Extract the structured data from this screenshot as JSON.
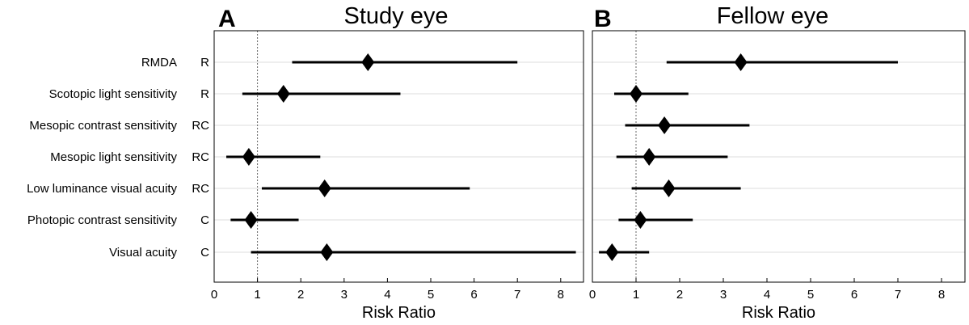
{
  "chart_data": [
    {
      "type": "forest",
      "panel": "A",
      "title": "Study eye",
      "xlabel": "Risk Ratio",
      "xlim": [
        0,
        8.4
      ],
      "xticks": [
        "0",
        "1",
        "2",
        "3",
        "4",
        "5",
        "6",
        "7",
        "8"
      ],
      "reference_line": 1,
      "gridlines": "horizontal",
      "marker": "diamond",
      "rows": [
        {
          "label": "RMDA",
          "code": "R",
          "estimate": 3.55,
          "lower": 1.8,
          "upper": 7.0
        },
        {
          "label": "Scotopic light sensitivity",
          "code": "R",
          "estimate": 1.6,
          "lower": 0.65,
          "upper": 4.3
        },
        {
          "label": "Mesopic contrast sensitivity",
          "code": "RC",
          "estimate": null,
          "lower": null,
          "upper": null
        },
        {
          "label": "Mesopic light sensitivity",
          "code": "RC",
          "estimate": 0.8,
          "lower": 0.28,
          "upper": 2.45
        },
        {
          "label": "Low luminance visual acuity",
          "code": "RC",
          "estimate": 2.55,
          "lower": 1.1,
          "upper": 5.9
        },
        {
          "label": "Photopic contrast sensitivity",
          "code": "C",
          "estimate": 0.85,
          "lower": 0.38,
          "upper": 1.95
        },
        {
          "label": "Visual acuity",
          "code": "C",
          "estimate": 2.6,
          "lower": 0.85,
          "upper": 8.35
        }
      ]
    },
    {
      "type": "forest",
      "panel": "B",
      "title": "Fellow eye",
      "xlabel": "Risk Ratio",
      "xlim": [
        0,
        8.4
      ],
      "xticks": [
        "0",
        "1",
        "2",
        "3",
        "4",
        "5",
        "6",
        "7",
        "8"
      ],
      "reference_line": 1,
      "gridlines": "horizontal",
      "marker": "diamond",
      "rows": [
        {
          "label": "RMDA",
          "code": "R",
          "estimate": 3.4,
          "lower": 1.7,
          "upper": 7.0
        },
        {
          "label": "Scotopic light sensitivity",
          "code": "R",
          "estimate": 1.0,
          "lower": 0.5,
          "upper": 2.2
        },
        {
          "label": "Mesopic contrast sensitivity",
          "code": "RC",
          "estimate": 1.65,
          "lower": 0.75,
          "upper": 3.6
        },
        {
          "label": "Mesopic light sensitivity",
          "code": "RC",
          "estimate": 1.3,
          "lower": 0.55,
          "upper": 3.1
        },
        {
          "label": "Low luminance visual acuity",
          "code": "RC",
          "estimate": 1.75,
          "lower": 0.9,
          "upper": 3.4
        },
        {
          "label": "Photopic contrast sensitivity",
          "code": "C",
          "estimate": 1.1,
          "lower": 0.6,
          "upper": 2.3
        },
        {
          "label": "Visual acuity",
          "code": "C",
          "estimate": 0.45,
          "lower": 0.15,
          "upper": 1.3
        }
      ]
    }
  ]
}
